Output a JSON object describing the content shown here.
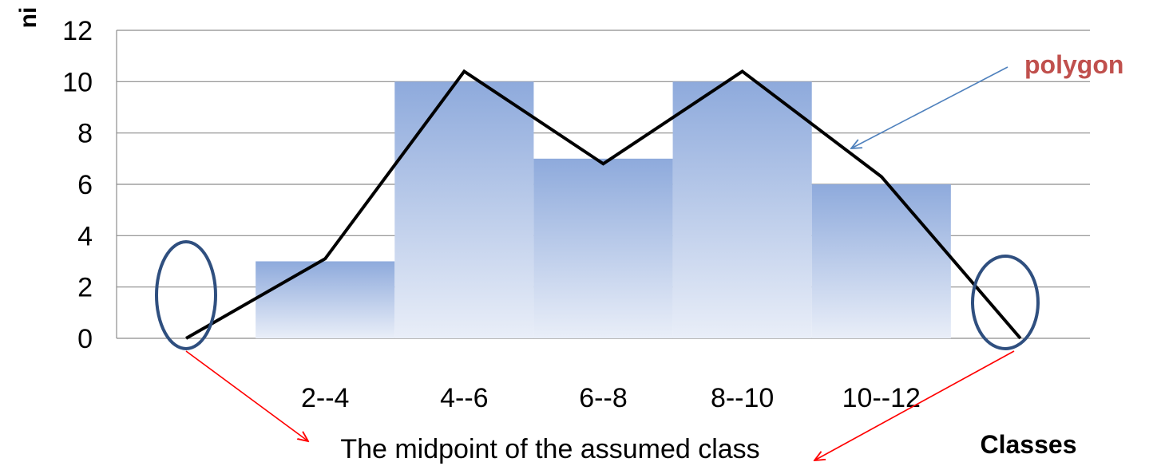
{
  "chart_data": {
    "type": "bar",
    "categories": [
      "",
      "2--4",
      "4--6",
      "6--8",
      "8--10",
      "10--12",
      ""
    ],
    "values": [
      0,
      3,
      10,
      7,
      10,
      6,
      0
    ],
    "polygon": {
      "label": "polygon",
      "x": [
        "",
        "2--4",
        "4--6",
        "6--8",
        "8--10",
        "10--12",
        ""
      ],
      "y": [
        0,
        3.1,
        10.4,
        6.8,
        10.4,
        6.3,
        0
      ]
    },
    "ylim": [
      0,
      12
    ],
    "yticks": [
      "0",
      "2",
      "4",
      "6",
      "8",
      "10",
      "12"
    ],
    "ylabel": "ni",
    "xlabel": "Classes",
    "annotation": "The midpoint of the assumed class",
    "grid": true
  },
  "colors": {
    "bar_top": "#8eaadc",
    "bar_bottom": "#e9eef8",
    "polygon_line": "#000000",
    "polygon_label": "#c0504d",
    "arrow_blue": "#4f81bd",
    "ellipse": "#2f4f7f",
    "arrow_red": "#ff0000",
    "grid": "#8c8c8c"
  }
}
